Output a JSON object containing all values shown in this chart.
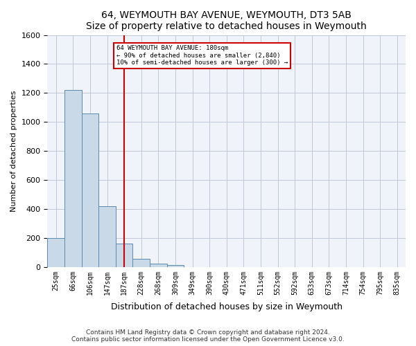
{
  "title": "64, WEYMOUTH BAY AVENUE, WEYMOUTH, DT3 5AB",
  "subtitle": "Size of property relative to detached houses in Weymouth",
  "xlabel": "Distribution of detached houses by size in Weymouth",
  "ylabel": "Number of detached properties",
  "footer_line1": "Contains HM Land Registry data © Crown copyright and database right 2024.",
  "footer_line2": "Contains public sector information licensed under the Open Government Licence v3.0.",
  "bins": [
    "25sqm",
    "66sqm",
    "106sqm",
    "147sqm",
    "187sqm",
    "228sqm",
    "268sqm",
    "309sqm",
    "349sqm",
    "390sqm",
    "430sqm",
    "471sqm",
    "511sqm",
    "552sqm",
    "592sqm",
    "633sqm",
    "673sqm",
    "714sqm",
    "754sqm",
    "795sqm",
    "835sqm"
  ],
  "values": [
    200,
    1220,
    1060,
    420,
    160,
    55,
    25,
    15,
    0,
    0,
    0,
    0,
    0,
    0,
    0,
    0,
    0,
    0,
    0,
    0,
    0
  ],
  "highlight_bin_index": 4,
  "bar_color": "#c9d9e8",
  "bar_edge_color": "#5a8ab0",
  "highlight_line_color": "#cc0000",
  "ylim": [
    0,
    1600
  ],
  "yticks": [
    0,
    200,
    400,
    600,
    800,
    1000,
    1200,
    1400,
    1600
  ],
  "annotation_text": "64 WEYMOUTH BAY AVENUE: 180sqm\n← 90% of detached houses are smaller (2,840)\n10% of semi-detached houses are larger (300) →",
  "annotation_box_color": "#cc0000",
  "grid_color": "#c0c8d8",
  "background_color": "#f0f4fa"
}
